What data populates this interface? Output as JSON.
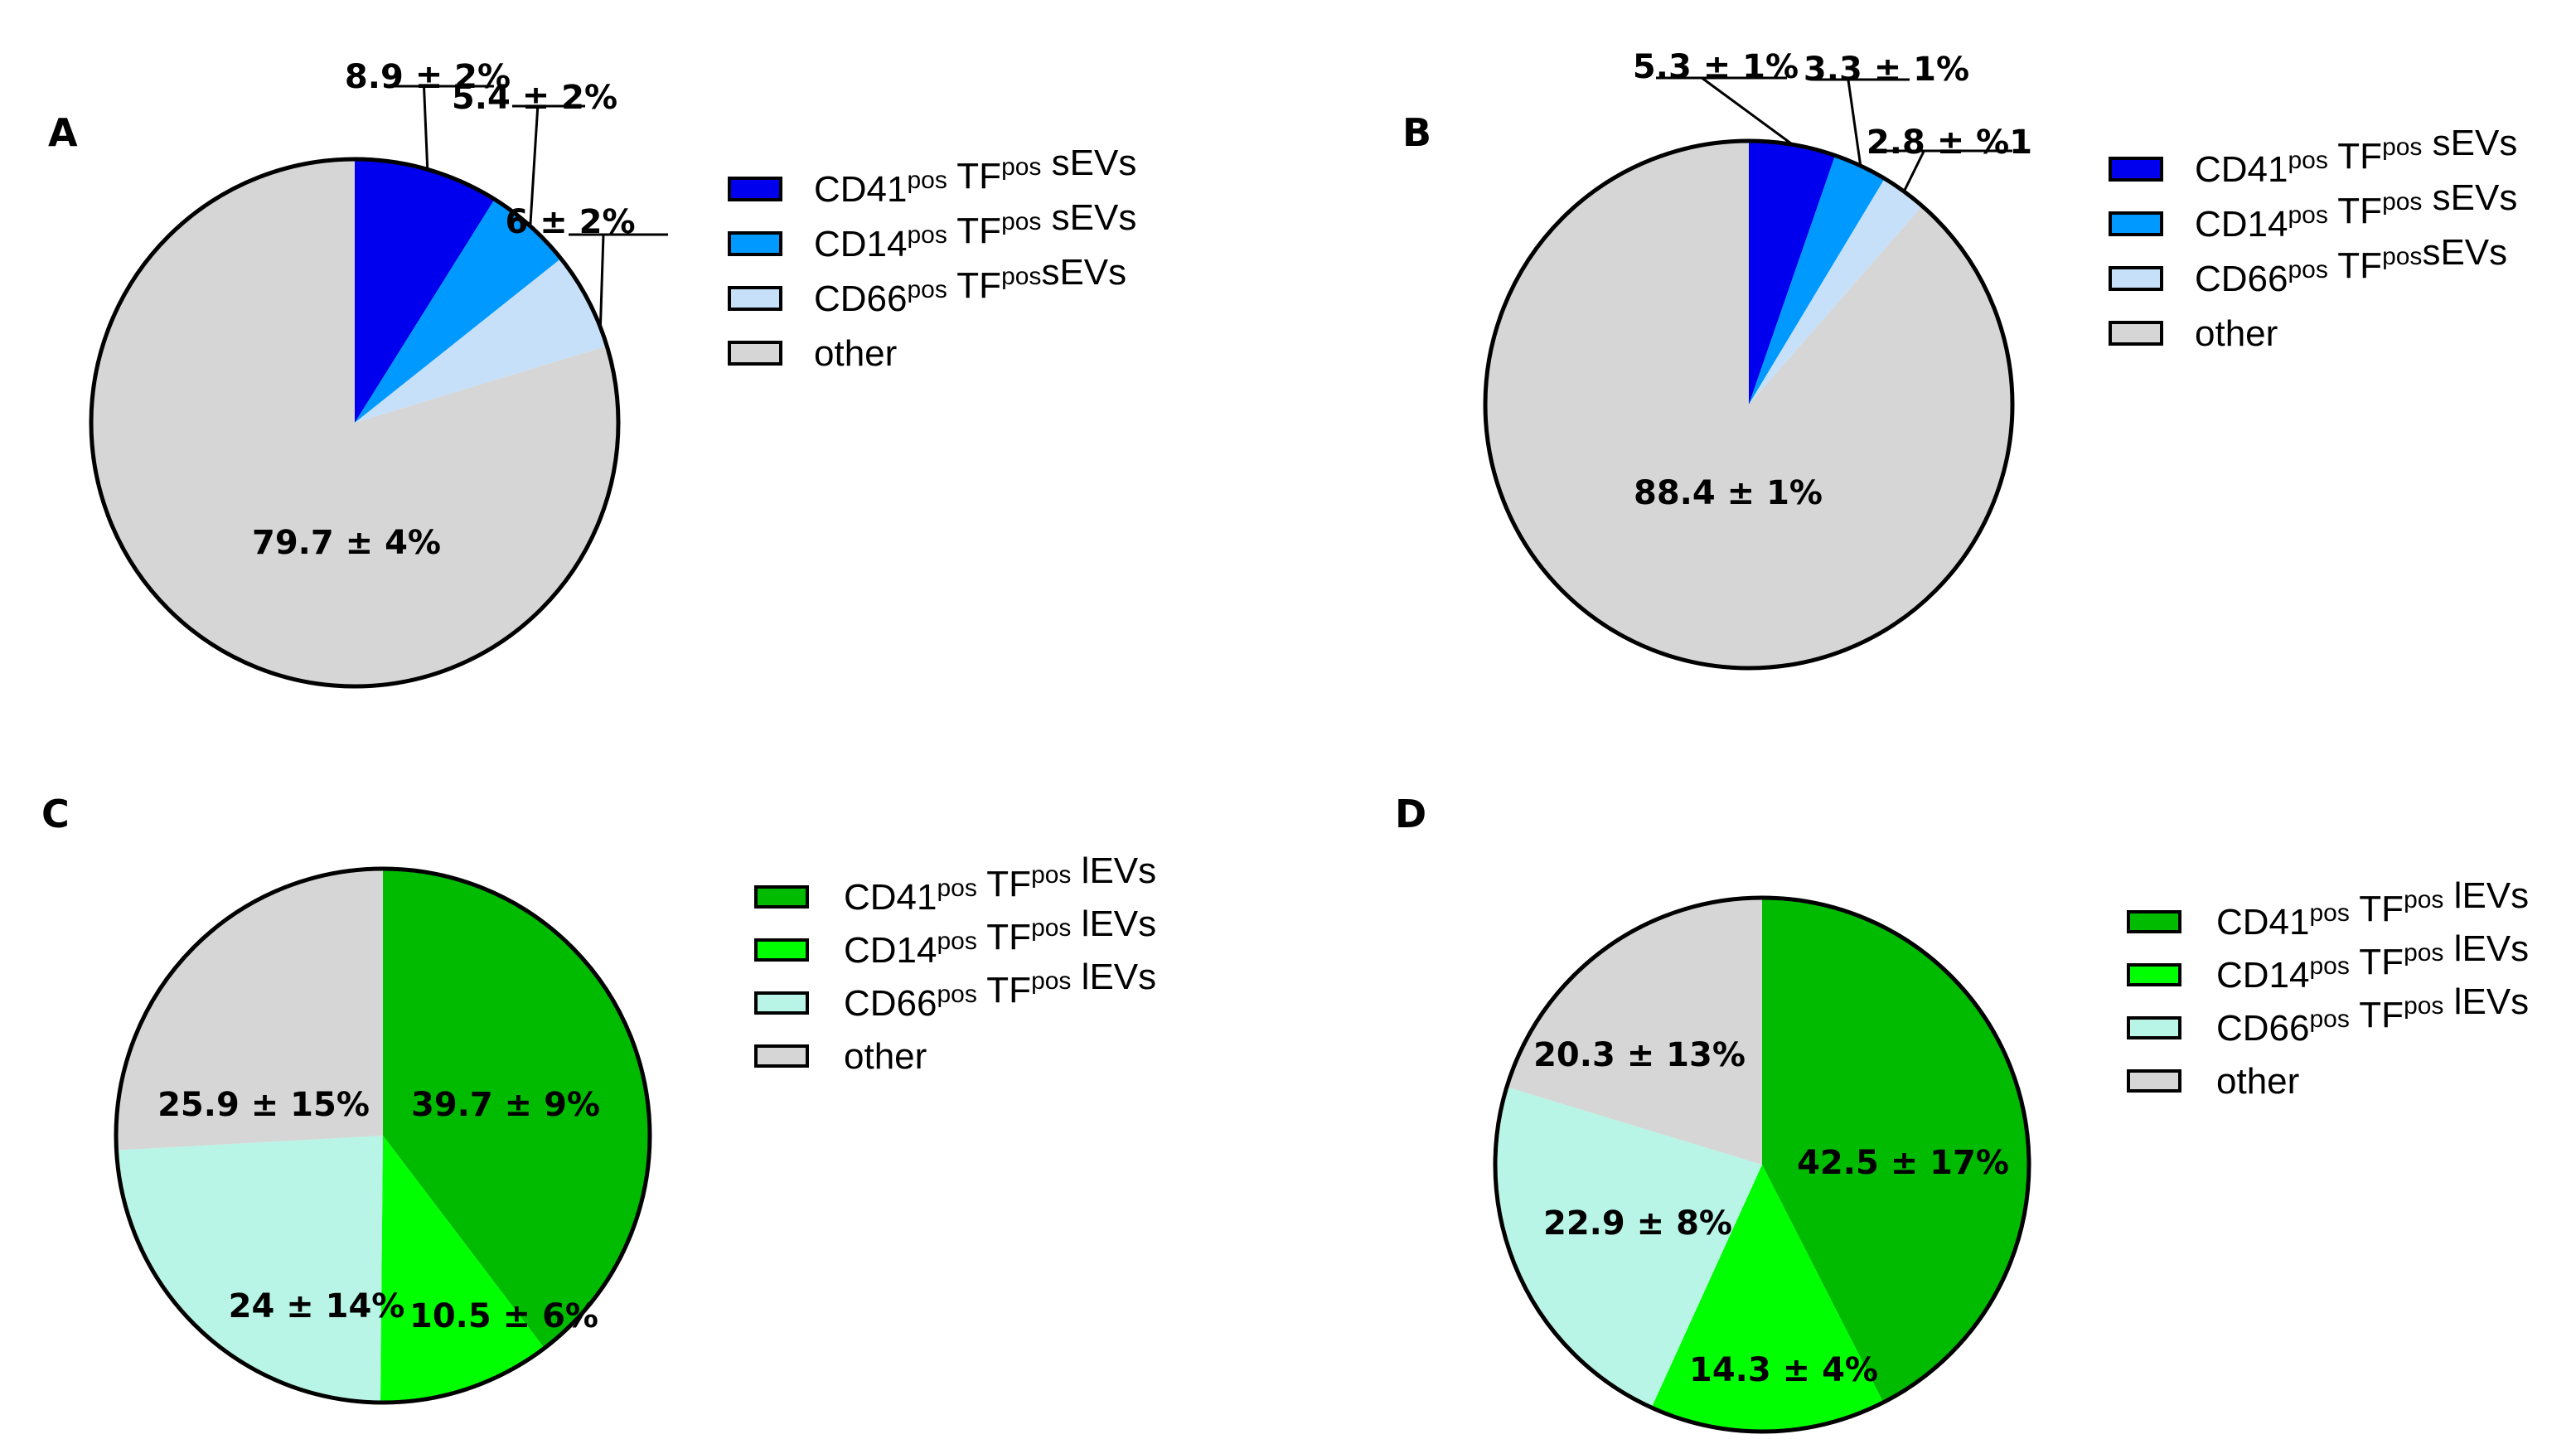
{
  "chart_data": [
    {
      "type": "pie",
      "panel": "A",
      "slices": [
        {
          "label": "CD41 pos TF pos sEVs",
          "legend": {
            "base": "CD41",
            "sup1": "pos",
            "mid": " TF",
            "sup2": "pos",
            "tail": " sEVs"
          },
          "value": 8.9,
          "text": "8.9 ± 2%",
          "color": "#0000ee"
        },
        {
          "label": "CD14 pos TF pos sEVs",
          "legend": {
            "base": "CD14",
            "sup1": "pos",
            "mid": " TF",
            "sup2": "pos",
            "tail": " sEVs"
          },
          "value": 5.4,
          "text": "5.4 ± 2%",
          "color": "#0099ff"
        },
        {
          "label": "CD66 pos TF pos sEVs",
          "legend": {
            "base": "CD66",
            "sup1": "pos",
            "mid": " TF",
            "sup2": "pos",
            "tail": "sEVs"
          },
          "value": 6,
          "text": "6 ± 2%",
          "color": "#c6e0fa"
        },
        {
          "label": "other",
          "legend": {
            "base": "other",
            "sup1": "",
            "mid": "",
            "sup2": "",
            "tail": ""
          },
          "value": 79.7,
          "text": "79.7 ± 4%",
          "color": "#d6d6d6"
        }
      ]
    },
    {
      "type": "pie",
      "panel": "B",
      "slices": [
        {
          "label": "CD41 pos TF pos sEVs",
          "legend": {
            "base": "CD41",
            "sup1": "pos",
            "mid": " TF",
            "sup2": "pos",
            "tail": " sEVs"
          },
          "value": 5.3,
          "text": "5.3 ± 1%",
          "color": "#0000ee"
        },
        {
          "label": "CD14 pos TF pos sEVs",
          "legend": {
            "base": "CD14",
            "sup1": "pos",
            "mid": " TF",
            "sup2": "pos",
            "tail": " sEVs"
          },
          "value": 3.3,
          "text": "3.3 ± 1%",
          "color": "#0099ff"
        },
        {
          "label": "CD66 pos TF pos sEVs",
          "legend": {
            "base": "CD66",
            "sup1": "pos",
            "mid": " TF",
            "sup2": "pos",
            "tail": "sEVs"
          },
          "value": 2.8,
          "text": "2.8 ± %1",
          "color": "#c6e0fa"
        },
        {
          "label": "other",
          "legend": {
            "base": "other",
            "sup1": "",
            "mid": "",
            "sup2": "",
            "tail": ""
          },
          "value": 88.4,
          "text": "88.4 ± 1%",
          "color": "#d6d6d6"
        }
      ]
    },
    {
      "type": "pie",
      "panel": "C",
      "slices": [
        {
          "label": "CD41 pos TF pos lEVs",
          "legend": {
            "base": "CD41",
            "sup1": "pos",
            "mid": " TF",
            "sup2": "pos",
            "tail": " lEVs"
          },
          "value": 39.7,
          "text": "39.7 ± 9%",
          "color": "#00bb00"
        },
        {
          "label": "CD14 pos TF pos lEVs",
          "legend": {
            "base": "CD14",
            "sup1": "pos",
            "mid": " TF",
            "sup2": "pos",
            "tail": " lEVs"
          },
          "value": 10.5,
          "text": "10.5 ± 6%",
          "color": "#00ff00"
        },
        {
          "label": "CD66 pos TF pos lEVs",
          "legend": {
            "base": "CD66",
            "sup1": "pos",
            "mid": " TF",
            "sup2": "pos",
            "tail": " lEVs"
          },
          "value": 24,
          "text": "24 ± 14%",
          "color": "#b8f5e6"
        },
        {
          "label": "other",
          "legend": {
            "base": "other",
            "sup1": "",
            "mid": "",
            "sup2": "",
            "tail": ""
          },
          "value": 25.9,
          "text": "25.9 ± 15%",
          "color": "#d6d6d6"
        }
      ]
    },
    {
      "type": "pie",
      "panel": "D",
      "slices": [
        {
          "label": "CD41 pos TF pos lEVs",
          "legend": {
            "base": "CD41",
            "sup1": "pos",
            "mid": " TF",
            "sup2": "pos",
            "tail": " lEVs"
          },
          "value": 42.5,
          "text": "42.5 ± 17%",
          "color": "#00bb00"
        },
        {
          "label": "CD14 pos TF pos lEVs",
          "legend": {
            "base": "CD14",
            "sup1": "pos",
            "mid": " TF",
            "sup2": "pos",
            "tail": " lEVs"
          },
          "value": 14.3,
          "text": "14.3 ± 4%",
          "color": "#00ff00"
        },
        {
          "label": "CD66 pos TF pos lEVs",
          "legend": {
            "base": "CD66",
            "sup1": "pos",
            "mid": " TF",
            "sup2": "pos",
            "tail": " lEVs"
          },
          "value": 22.9,
          "text": "22.9 ± 8%",
          "color": "#b8f5e6"
        },
        {
          "label": "other",
          "legend": {
            "base": "other",
            "sup1": "",
            "mid": "",
            "sup2": "",
            "tail": ""
          },
          "value": 20.3,
          "text": "20.3 ± 13%",
          "color": "#d6d6d6"
        }
      ]
    }
  ]
}
